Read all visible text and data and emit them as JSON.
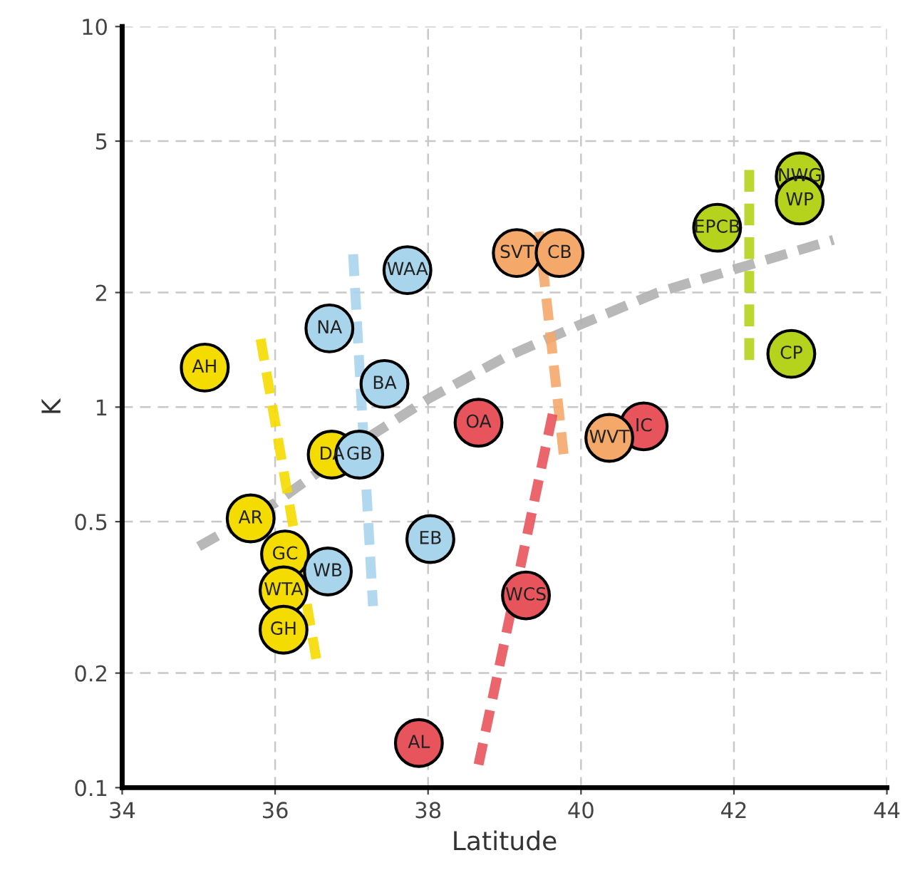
{
  "chart_data": {
    "type": "scatter",
    "xlabel": "Latitude",
    "ylabel": "K",
    "log": "y",
    "xlim": [
      34,
      44
    ],
    "xticks": [
      34,
      36,
      38,
      40,
      42,
      44
    ],
    "ylim": [
      0.1,
      10
    ],
    "yticks": [
      0.1,
      0.2,
      0.5,
      1,
      2,
      5,
      10
    ],
    "grid": true,
    "series": [
      {
        "marker": "circle",
        "color": "#f5dc00",
        "x": [
          35.08,
          35.68,
          36.13,
          36.11,
          36.11,
          36.74
        ],
        "values": [
          1.27,
          0.51,
          0.41,
          0.33,
          0.26,
          0.75
        ]
      },
      {
        "marker": "circle",
        "color": "#a8d4ec",
        "x": [
          36.71,
          37.73,
          37.43,
          38.03,
          36.69,
          37.1
        ],
        "values": [
          1.61,
          2.29,
          1.15,
          0.45,
          0.37,
          0.75
        ]
      },
      {
        "marker": "circle",
        "color": "#e8545c",
        "x": [
          37.88,
          38.66,
          39.28,
          40.82
        ],
        "values": [
          0.131,
          0.91,
          0.32,
          0.89
        ]
      },
      {
        "marker": "circle",
        "color": "#f4a86a",
        "x": [
          40.37,
          39.16,
          39.72
        ],
        "values": [
          0.83,
          2.54,
          2.54
        ]
      },
      {
        "marker": "circle",
        "color": "#b5d21c",
        "x": [
          41.78,
          42.86,
          42.86,
          42.75
        ],
        "values": [
          2.96,
          4.04,
          3.49,
          1.38
        ]
      },
      {
        "type": "line",
        "line_style": "dashed",
        "color": "#b0b0b0",
        "x": [
          35.0,
          36.0,
          37.0,
          38.0,
          39.0,
          40.0,
          41.0,
          42.0,
          43.3
        ],
        "values": [
          0.43,
          0.56,
          0.78,
          1.05,
          1.35,
          1.65,
          2.0,
          2.3,
          2.75
        ]
      },
      {
        "type": "line",
        "line_style": "dashed",
        "color": "#f5dc00",
        "x": [
          35.81,
          36.54
        ],
        "values": [
          1.51,
          0.217
        ]
      },
      {
        "type": "line",
        "line_style": "dashed",
        "color": "#a8d4ec",
        "x": [
          37.02,
          37.28
        ],
        "values": [
          2.52,
          0.3
        ]
      },
      {
        "type": "line",
        "line_style": "dashed",
        "color": "#f4a86a",
        "x": [
          39.45,
          39.78
        ],
        "values": [
          2.89,
          0.73
        ]
      },
      {
        "type": "line",
        "line_style": "dashed",
        "color": "#e8545c",
        "x": [
          38.66,
          39.63
        ],
        "values": [
          0.115,
          0.96
        ]
      },
      {
        "type": "line",
        "line_style": "dashed",
        "color": "#b5d21c",
        "x": [
          42.2,
          42.2
        ],
        "values": [
          4.2,
          1.26
        ]
      }
    ],
    "annotations": [
      {
        "text": "AH",
        "x": 35.08,
        "y": 1.27
      },
      {
        "text": "AR",
        "x": 35.68,
        "y": 0.51
      },
      {
        "text": "GC",
        "x": 36.13,
        "y": 0.41
      },
      {
        "text": "WTA",
        "x": 36.11,
        "y": 0.33
      },
      {
        "text": "GH",
        "x": 36.11,
        "y": 0.26
      },
      {
        "text": "DA",
        "x": 36.74,
        "y": 0.75
      },
      {
        "text": "NA",
        "x": 36.71,
        "y": 1.61
      },
      {
        "text": "WAA",
        "x": 37.73,
        "y": 2.29
      },
      {
        "text": "BA",
        "x": 37.43,
        "y": 1.15
      },
      {
        "text": "EB",
        "x": 38.03,
        "y": 0.45
      },
      {
        "text": "WB",
        "x": 36.69,
        "y": 0.37
      },
      {
        "text": "GB",
        "x": 37.1,
        "y": 0.75
      },
      {
        "text": "AL",
        "x": 37.88,
        "y": 0.131
      },
      {
        "text": "OA",
        "x": 38.66,
        "y": 0.91
      },
      {
        "text": "WCS",
        "x": 39.28,
        "y": 0.32
      },
      {
        "text": "IC",
        "x": 40.82,
        "y": 0.89
      },
      {
        "text": "WVT",
        "x": 40.37,
        "y": 0.83
      },
      {
        "text": "SVT",
        "x": 39.16,
        "y": 2.54
      },
      {
        "text": "CB",
        "x": 39.72,
        "y": 2.54
      },
      {
        "text": "EPCB",
        "x": 41.78,
        "y": 2.96
      },
      {
        "text": "NWG",
        "x": 42.86,
        "y": 4.04
      },
      {
        "text": "WP",
        "x": 42.86,
        "y": 3.49
      },
      {
        "text": "CP",
        "x": 42.75,
        "y": 1.38
      }
    ]
  }
}
